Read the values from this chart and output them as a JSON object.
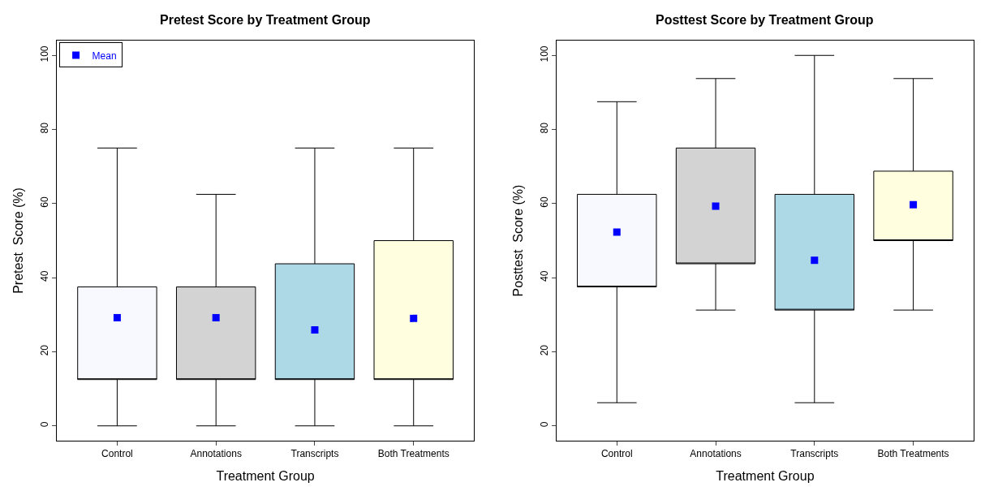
{
  "chart_data": [
    {
      "type": "box",
      "title": "Pretest Score by Treatment Group",
      "xlabel": "Treatment Group",
      "ylabel": "Pretest  Score (%)",
      "categories": [
        "Control",
        "Annotations",
        "Transcripts",
        "Both Treatments"
      ],
      "colors": [
        "#f8f8ff",
        "#d3d3d3",
        "#add8e6",
        "#ffffe0"
      ],
      "boxes": [
        {
          "low": 0,
          "q1": 12.5,
          "q3": 37.5,
          "high": 75
        },
        {
          "low": 0,
          "q1": 12.5,
          "q3": 37.5,
          "high": 62.5
        },
        {
          "low": 0,
          "q1": 12.5,
          "q3": 43.75,
          "high": 75
        },
        {
          "low": 0,
          "q1": 12.5,
          "q3": 50,
          "high": 75
        }
      ],
      "series": [
        {
          "type": "scatter",
          "name": "Mean",
          "color": "#0000ff",
          "x": [
            "Control",
            "Annotations",
            "Transcripts",
            "Both Treatments"
          ],
          "values": [
            29.2,
            29.2,
            25.9,
            29.0
          ]
        }
      ],
      "marker": "square",
      "ylim": [
        -4,
        104
      ],
      "yticks": [
        0,
        20,
        40,
        60,
        80,
        100
      ],
      "legend": "top left"
    },
    {
      "type": "box",
      "title": "Posttest Score by Treatment Group",
      "xlabel": "Treatment Group",
      "ylabel": "Posttest  Score (%)",
      "categories": [
        "Control",
        "Annotations",
        "Transcripts",
        "Both Treatments"
      ],
      "colors": [
        "#f8f8ff",
        "#d3d3d3",
        "#add8e6",
        "#ffffe0"
      ],
      "boxes": [
        {
          "low": 6.25,
          "q1": 37.5,
          "q3": 62.5,
          "high": 87.5
        },
        {
          "low": 31.25,
          "q1": 43.75,
          "q3": 75,
          "high": 93.75
        },
        {
          "low": 6.25,
          "q1": 31.25,
          "q3": 62.5,
          "high": 100
        },
        {
          "low": 31.25,
          "q1": 50,
          "q3": 68.75,
          "high": 93.75
        }
      ],
      "series": [
        {
          "type": "scatter",
          "color": "#0000ff",
          "x": [
            "Control",
            "Annotations",
            "Transcripts",
            "Both Treatments"
          ],
          "values": [
            52.3,
            59.3,
            44.7,
            59.7
          ]
        }
      ],
      "marker": "square",
      "ylim": [
        -4,
        104
      ],
      "yticks": [
        0,
        20,
        40,
        60,
        80,
        100
      ],
      "legend": false
    }
  ]
}
